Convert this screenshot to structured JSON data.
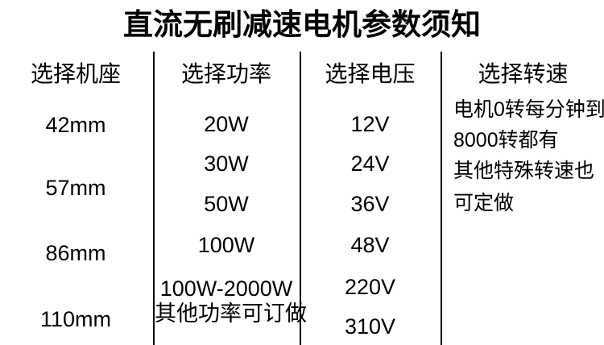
{
  "page": {
    "title": "直流无刷减速电机参数须知"
  },
  "colors": {
    "text": "#000000",
    "background": "#ffffff",
    "divider": "#000000"
  },
  "columns": [
    {
      "header": "选择机座",
      "items": [
        "42mm",
        "57mm",
        "86mm",
        "110mm"
      ]
    },
    {
      "header": "选择功率",
      "items": [
        "20W",
        "30W",
        "50W",
        "100W",
        "100W-2000W",
        "其他功率可订做"
      ]
    },
    {
      "header": "选择电压",
      "items": [
        "12V",
        "24V",
        "36V",
        "48V",
        "220V",
        "310V"
      ]
    },
    {
      "header": "选择转速",
      "lines": [
        "电机0转每分钟到",
        "8000转都有",
        "其他特殊转速也",
        "可定做"
      ]
    }
  ]
}
